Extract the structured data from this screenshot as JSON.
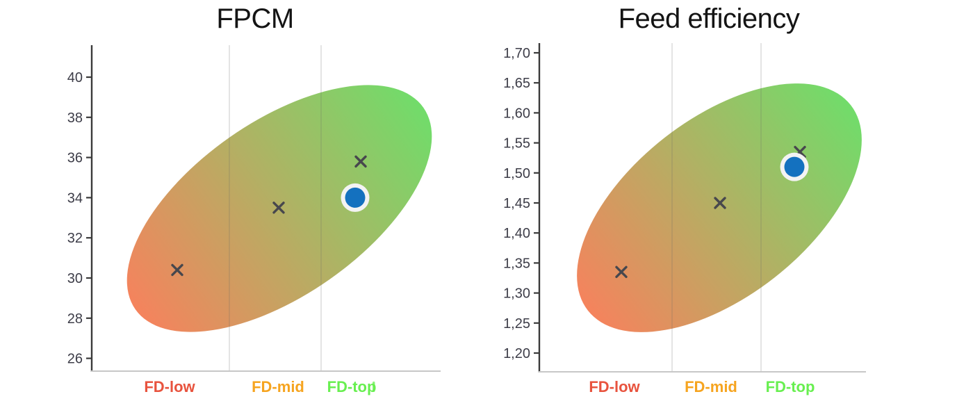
{
  "theme": {
    "background": "#ffffff",
    "title_color": "#141414",
    "axis_line_color": "#3a3a3a",
    "baseline_color": "#c7c7c7",
    "grid_color": "#6b6b6b",
    "tick_label_color": "#3d3d48"
  },
  "chart_data": [
    {
      "type": "scatter",
      "title": "FPCM",
      "categories": [
        "FD-low",
        "FD-mid",
        "FD-top"
      ],
      "category_label_colors": [
        "#e8533e",
        "#f6a41f",
        "#68ef50"
      ],
      "last_category_label_clipped": true,
      "ylim": [
        26,
        40
      ],
      "y_tick_values": [
        40,
        38,
        36,
        34,
        32,
        30,
        28,
        26
      ],
      "y_tick_labels": [
        "40",
        "38",
        "36",
        "34",
        "32",
        "30",
        "28",
        "26"
      ],
      "grid": "vertical-category-separators",
      "legend": "none",
      "series": [
        {
          "name": "scenario-points",
          "marker": "x",
          "color": "#47474d",
          "values": [
            30.4,
            33.5,
            35.8
          ]
        },
        {
          "name": "highlight-point",
          "marker": "circle",
          "color": "#1471bf",
          "ring_color": "#f3f3f3",
          "category_index": 2,
          "value": 34.0
        }
      ],
      "band": {
        "shape": "rotated-ellipse",
        "gradient_from": "#f5835d",
        "gradient_to": "#71dc6a"
      }
    },
    {
      "type": "scatter",
      "title": "Feed efficiency",
      "categories": [
        "FD-low",
        "FD-mid",
        "FD-top"
      ],
      "category_label_colors": [
        "#e8533e",
        "#f6a41f",
        "#68ef50"
      ],
      "last_category_label_clipped": false,
      "ylim": [
        1.2,
        1.7
      ],
      "y_tick_values": [
        1.7,
        1.65,
        1.6,
        1.55,
        1.5,
        1.45,
        1.4,
        1.35,
        1.3,
        1.25,
        1.2
      ],
      "y_tick_labels": [
        "1,70",
        "1,65",
        "1,60",
        "1,55",
        "1,50",
        "1,45",
        "1,40",
        "1,35",
        "1,30",
        "1,25",
        "1,20"
      ],
      "grid": "vertical-category-separators",
      "legend": "none",
      "series": [
        {
          "name": "scenario-points",
          "marker": "x",
          "color": "#47474d",
          "values": [
            1.335,
            1.45,
            1.535
          ]
        },
        {
          "name": "highlight-point",
          "marker": "circle",
          "color": "#1471bf",
          "ring_color": "#f3f3f3",
          "category_index": 2,
          "value": 1.51
        }
      ],
      "band": {
        "shape": "rotated-ellipse",
        "gradient_from": "#f5835d",
        "gradient_to": "#71dc6a"
      }
    }
  ]
}
